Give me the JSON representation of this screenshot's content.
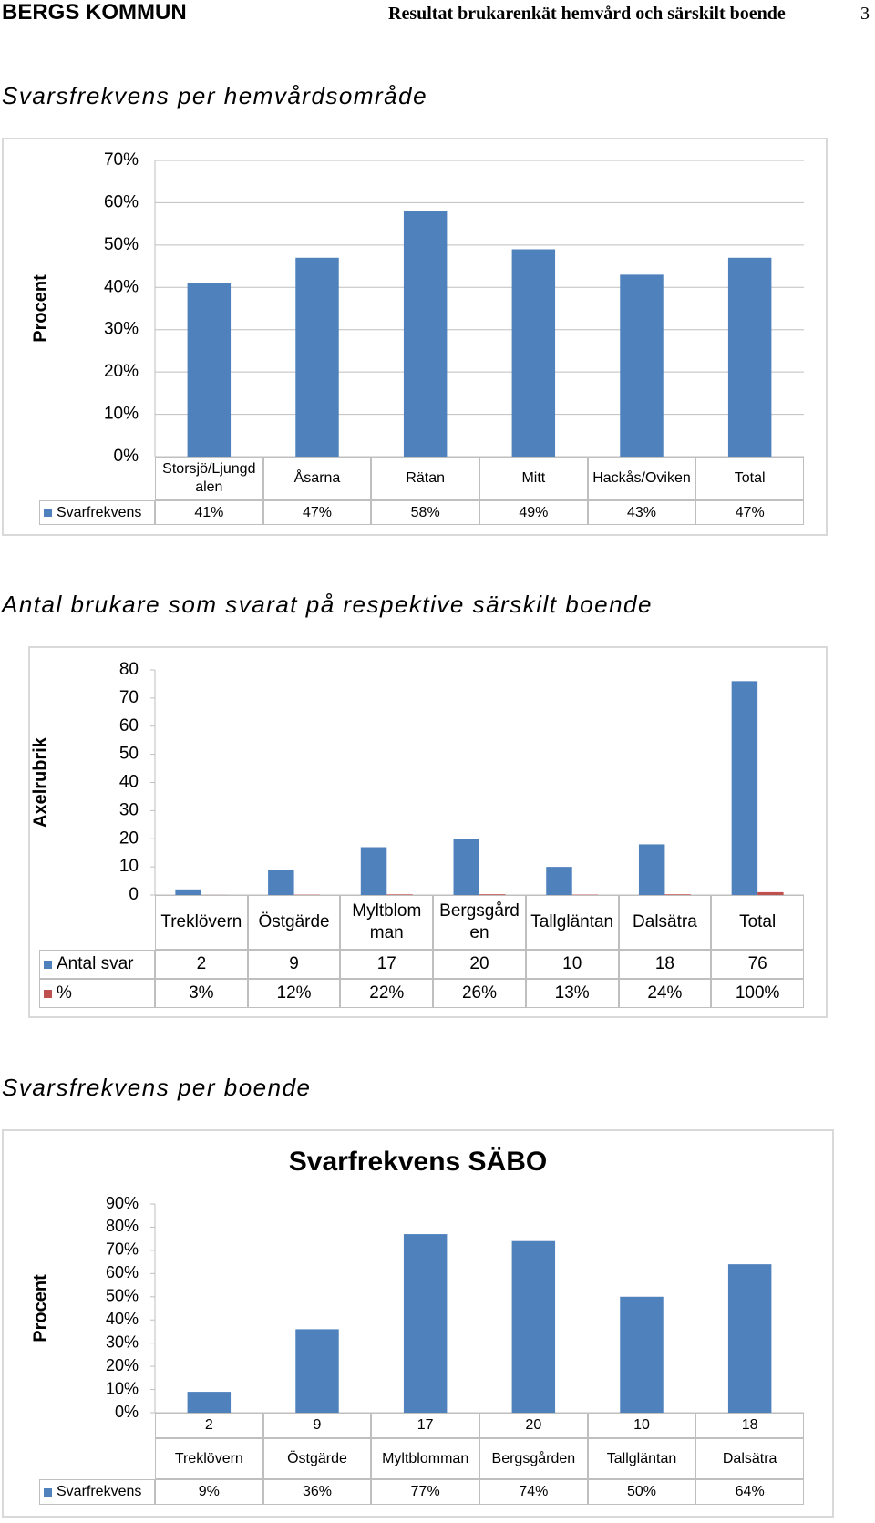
{
  "header": {
    "organization": "BERGS KOMMUN",
    "title": "Resultat brukarenkät hemvård och särskilt boende",
    "page": "3"
  },
  "sections": [
    {
      "heading": "Svarsfrekvens per hemvårdsområde"
    },
    {
      "heading": "Antal brukare som svarat på respektive särskilt boende"
    },
    {
      "heading": "Svarsfrekvens per boende"
    }
  ],
  "chart_data": [
    {
      "type": "bar",
      "y_label": "Procent",
      "categories": [
        "Storsjö/Ljungdalen",
        "Åsarna",
        "Rätan",
        "Mitt",
        "Hackås/Oviken",
        "Total"
      ],
      "series": [
        {
          "name": "Svarfrekvens",
          "color": "#4f81bd",
          "values": [
            41,
            47,
            58,
            49,
            43,
            47
          ],
          "value_labels": [
            "41%",
            "47%",
            "58%",
            "49%",
            "43%",
            "47%"
          ]
        }
      ],
      "ylim": [
        0,
        70
      ],
      "yticks": [
        {
          "value": 0,
          "label": "0%"
        },
        {
          "value": 10,
          "label": "10%"
        },
        {
          "value": 20,
          "label": "20%"
        },
        {
          "value": 30,
          "label": "30%"
        },
        {
          "value": 40,
          "label": "40%"
        },
        {
          "value": 50,
          "label": "50%"
        },
        {
          "value": 60,
          "label": "60%"
        },
        {
          "value": 70,
          "label": "70%"
        }
      ],
      "grid": true
    },
    {
      "type": "bar",
      "y_label": "Axelrubrik",
      "categories": [
        "Treklövern",
        "Östgärde",
        "Myltblomman",
        "Bergsgården",
        "Tallgläntan",
        "Dalsätra",
        "Total"
      ],
      "series": [
        {
          "name": "Antal svar",
          "color": "#4f81bd",
          "values": [
            2,
            9,
            17,
            20,
            10,
            18,
            76
          ]
        },
        {
          "name": "%",
          "color": "#c0504d",
          "values": [
            0.03,
            0.12,
            0.22,
            0.26,
            0.13,
            0.24,
            1
          ],
          "value_labels": [
            "3%",
            "12%",
            "22%",
            "26%",
            "13%",
            "24%",
            "100%"
          ]
        }
      ],
      "ylim": [
        0,
        80
      ],
      "yticks": [
        0,
        10,
        20,
        30,
        40,
        50,
        60,
        70,
        80
      ],
      "grid": false
    },
    {
      "type": "bar",
      "title": "Svarfrekvens SÄBO",
      "y_label": "Procent",
      "counts": [
        2,
        9,
        17,
        20,
        10,
        18
      ],
      "categories": [
        "Treklövern",
        "Östgärde",
        "Myltblomman",
        "Bergsgården",
        "Tallgläntan",
        "Dalsätra"
      ],
      "series": [
        {
          "name": "Svarfrekvens",
          "color": "#4f81bd",
          "values": [
            9,
            36,
            77,
            74,
            50,
            64
          ],
          "value_labels": [
            "9%",
            "36%",
            "77%",
            "74%",
            "50%",
            "64%"
          ]
        }
      ],
      "ylim": [
        0,
        90
      ],
      "yticks": [
        {
          "value": 0,
          "label": "0%"
        },
        {
          "value": 10,
          "label": "10%"
        },
        {
          "value": 20,
          "label": "20%"
        },
        {
          "value": 30,
          "label": "30%"
        },
        {
          "value": 40,
          "label": "40%"
        },
        {
          "value": 50,
          "label": "50%"
        },
        {
          "value": 60,
          "label": "60%"
        },
        {
          "value": 70,
          "label": "70%"
        },
        {
          "value": 80,
          "label": "80%"
        },
        {
          "value": 90,
          "label": "90%"
        }
      ],
      "grid": false
    }
  ]
}
